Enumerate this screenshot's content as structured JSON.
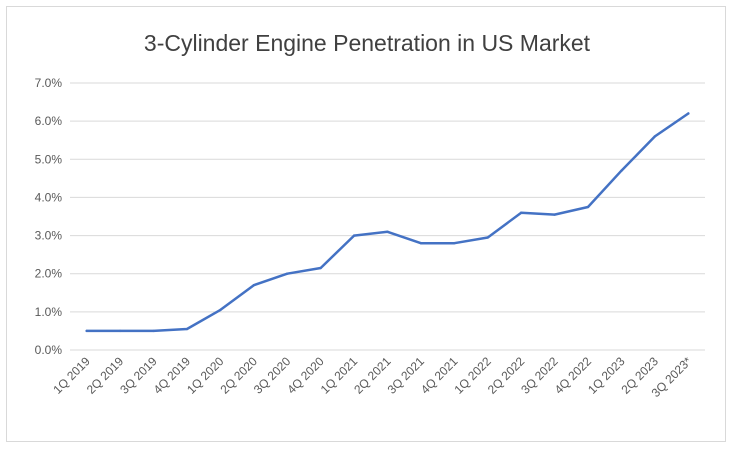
{
  "chart_data": {
    "type": "line",
    "title": "3-Cylinder Engine Penetration in US Market",
    "xlabel": "",
    "ylabel": "",
    "categories": [
      "1Q 2019",
      "2Q 2019",
      "3Q 2019",
      "4Q 2019",
      "1Q 2020",
      "2Q 2020",
      "3Q 2020",
      "4Q 2020",
      "1Q 2021",
      "2Q 2021",
      "3Q 2021",
      "4Q 2021",
      "1Q 2022",
      "2Q 2022",
      "3Q 2022",
      "4Q 2022",
      "1Q 2023",
      "2Q 2023",
      "3Q 2023*"
    ],
    "series": [
      {
        "values": [
          0.5,
          0.5,
          0.5,
          0.55,
          1.05,
          1.7,
          2.0,
          2.15,
          3.0,
          3.1,
          2.8,
          2.8,
          2.95,
          3.6,
          3.55,
          3.75,
          4.7,
          5.6,
          6.2
        ]
      }
    ],
    "ylim": [
      0,
      7
    ],
    "yticks": [
      0,
      1,
      2,
      3,
      4,
      5,
      6,
      7
    ],
    "ytick_labels": [
      "0.0%",
      "1.0%",
      "2.0%",
      "3.0%",
      "4.0%",
      "5.0%",
      "6.0%",
      "7.0%"
    ],
    "grid": true,
    "legend": "none",
    "line_color": "#4472c4"
  }
}
